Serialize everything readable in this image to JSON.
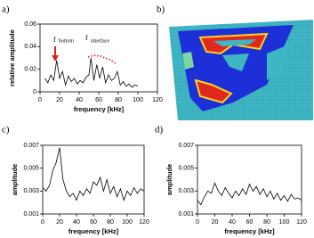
{
  "panel_labels": [
    "a)",
    "b)",
    "c)",
    "d)"
  ],
  "chart_data": [
    {
      "type": "line",
      "xlabel": "frequency [kHz]",
      "ylabel": "relative amplitude",
      "xlim": [
        0,
        120
      ],
      "xticks": [
        0,
        20,
        40,
        60,
        80,
        100,
        120
      ],
      "ylim": [
        0,
        0.06
      ],
      "yticks": [
        0,
        0.02,
        0.04,
        0.06
      ],
      "annotations": [
        "f",
        "bottom",
        "f",
        "interface"
      ],
      "series": [
        {
          "color": "#000000",
          "x": [
            5,
            8,
            11,
            14,
            17,
            20,
            23,
            26,
            29,
            32,
            35,
            38,
            41,
            44,
            47,
            50,
            52,
            55,
            58,
            61,
            64,
            67,
            70,
            73,
            76,
            79,
            82,
            85,
            88,
            91,
            94,
            97,
            100
          ],
          "values": [
            0.012,
            0.008,
            0.015,
            0.01,
            0.028,
            0.012,
            0.018,
            0.006,
            0.014,
            0.009,
            0.012,
            0.007,
            0.01,
            0.008,
            0.013,
            0.015,
            0.03,
            0.01,
            0.024,
            0.012,
            0.022,
            0.008,
            0.015,
            0.01,
            0.012,
            0.018,
            0.006,
            0.009,
            0.005,
            0.007,
            0.004,
            0.006,
            0.005
          ]
        }
      ]
    },
    {
      "type": "line",
      "xlabel": "frequency [kHz]",
      "ylabel": "amplitude",
      "xlim": [
        0,
        120
      ],
      "xticks": [
        0,
        20,
        40,
        60,
        80,
        100,
        120
      ],
      "ylim": [
        0.001,
        0.007
      ],
      "yticks": [
        0.001,
        0.003,
        0.005,
        0.007
      ],
      "series": [
        {
          "color": "#000000",
          "x": [
            0,
            4,
            8,
            12,
            16,
            20,
            24,
            28,
            32,
            36,
            40,
            44,
            48,
            52,
            56,
            60,
            64,
            68,
            72,
            76,
            80,
            84,
            88,
            92,
            96,
            100,
            104,
            108,
            112,
            116,
            120
          ],
          "values": [
            0.0033,
            0.003,
            0.0035,
            0.0048,
            0.0055,
            0.0068,
            0.004,
            0.003,
            0.0025,
            0.0028,
            0.0022,
            0.003,
            0.0026,
            0.0032,
            0.0028,
            0.0038,
            0.0035,
            0.0042,
            0.003,
            0.004,
            0.0028,
            0.0034,
            0.0025,
            0.0032,
            0.0022,
            0.003,
            0.0026,
            0.0033,
            0.0028,
            0.0032,
            0.003
          ]
        }
      ]
    },
    {
      "type": "line",
      "xlabel": "frequency [kHz]",
      "ylabel": "amplitude",
      "xlim": [
        0,
        120
      ],
      "xticks": [
        0,
        20,
        40,
        60,
        80,
        100,
        120
      ],
      "ylim": [
        0.001,
        0.007
      ],
      "yticks": [
        0.001,
        0.003,
        0.005,
        0.007
      ],
      "series": [
        {
          "color": "#000000",
          "x": [
            0,
            4,
            8,
            12,
            16,
            20,
            24,
            28,
            32,
            36,
            40,
            44,
            48,
            52,
            56,
            60,
            64,
            68,
            72,
            76,
            80,
            84,
            88,
            92,
            96,
            100,
            104,
            108,
            112,
            116,
            120
          ],
          "values": [
            0.0022,
            0.0018,
            0.0025,
            0.003,
            0.0028,
            0.0037,
            0.003,
            0.0026,
            0.0033,
            0.0028,
            0.0024,
            0.003,
            0.0026,
            0.0032,
            0.0027,
            0.0036,
            0.003,
            0.0034,
            0.0027,
            0.0032,
            0.0025,
            0.003,
            0.0023,
            0.0028,
            0.0022,
            0.0026,
            0.0021,
            0.0027,
            0.0023,
            0.0024,
            0.0022
          ]
        }
      ]
    }
  ]
}
